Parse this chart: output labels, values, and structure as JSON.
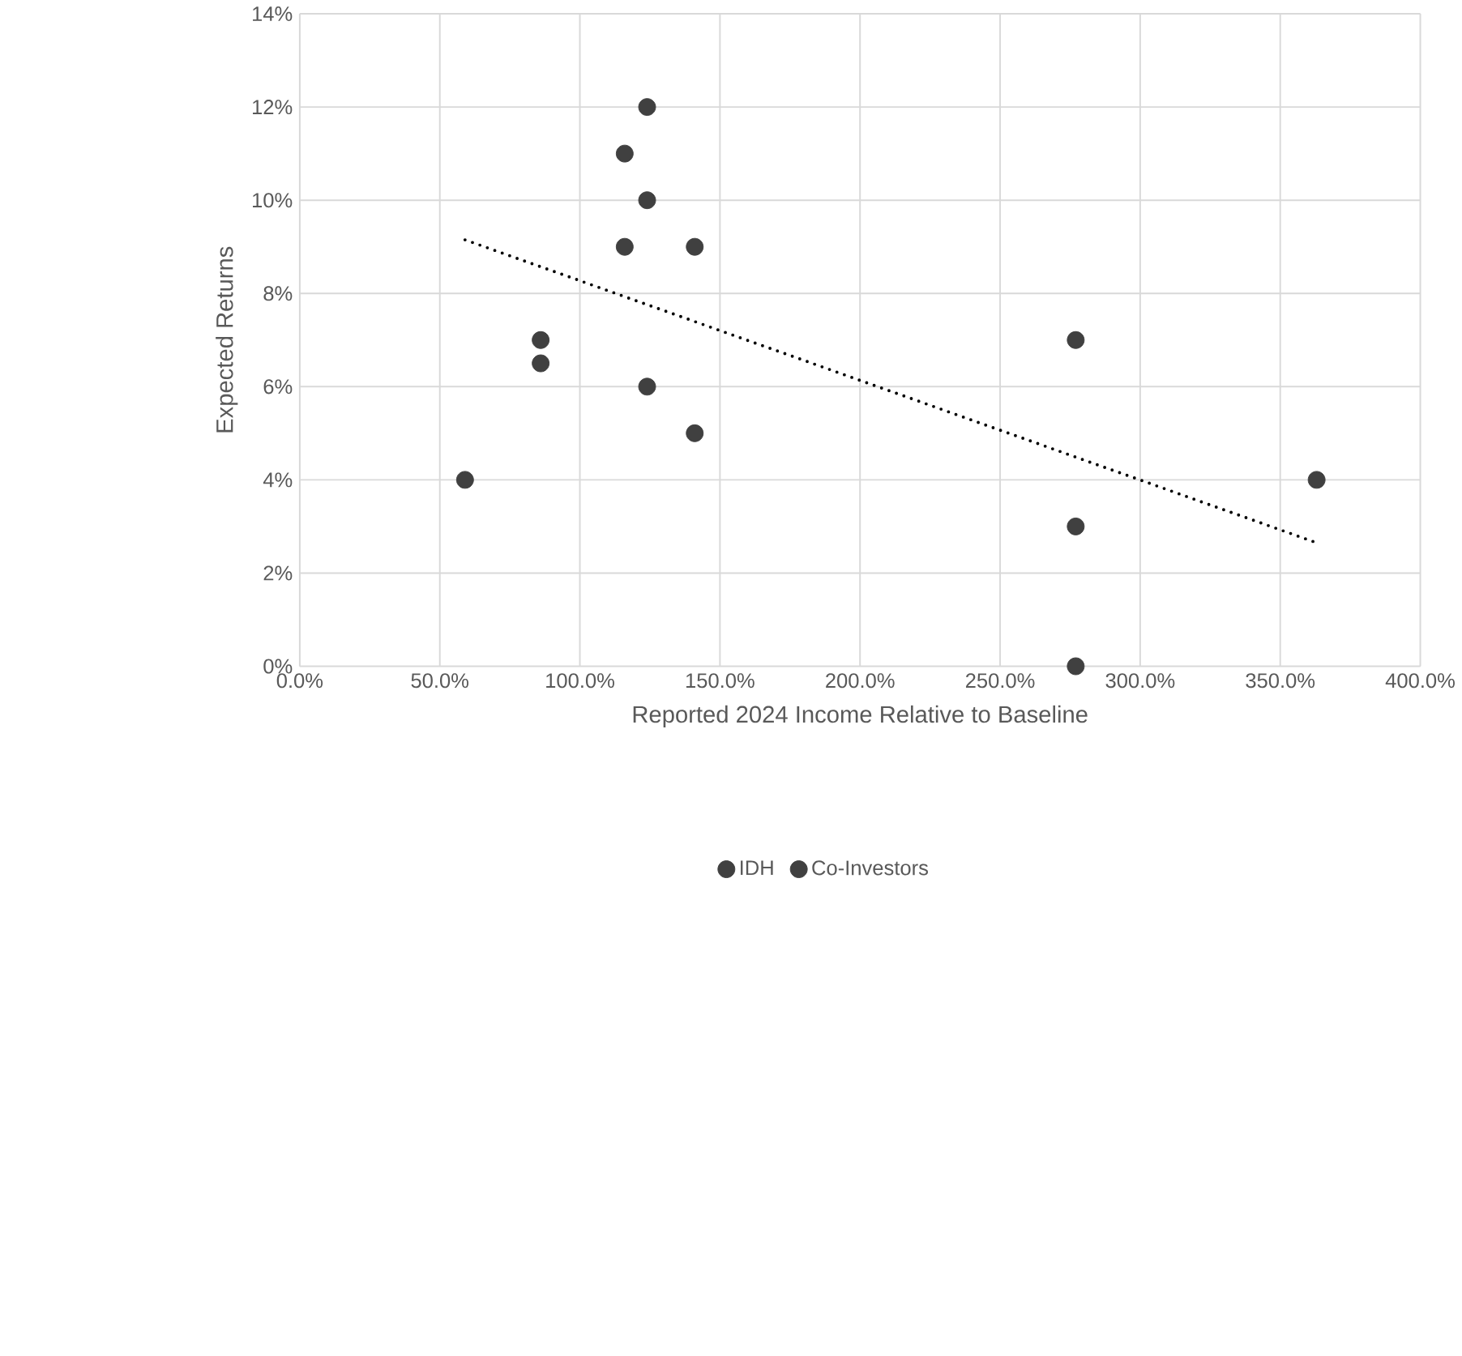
{
  "chart_data": {
    "type": "scatter",
    "xlabel": "Reported 2024 Income Relative to Baseline",
    "ylabel": "Expected Returns",
    "xlim": [
      0,
      400
    ],
    "ylim": [
      0,
      14
    ],
    "xticks": [
      {
        "value": 0,
        "label": "0.0%"
      },
      {
        "value": 50,
        "label": "50.0%"
      },
      {
        "value": 100,
        "label": "100.0%"
      },
      {
        "value": 150,
        "label": "150.0%"
      },
      {
        "value": 200,
        "label": "200.0%"
      },
      {
        "value": 250,
        "label": "250.0%"
      },
      {
        "value": 300,
        "label": "300.0%"
      },
      {
        "value": 350,
        "label": "350.0%"
      },
      {
        "value": 400,
        "label": "400.0%"
      }
    ],
    "yticks": [
      {
        "value": 0,
        "label": "0%"
      },
      {
        "value": 2,
        "label": "2%"
      },
      {
        "value": 4,
        "label": "4%"
      },
      {
        "value": 6,
        "label": "6%"
      },
      {
        "value": 8,
        "label": "8%"
      },
      {
        "value": 10,
        "label": "10%"
      },
      {
        "value": 12,
        "label": "12%"
      },
      {
        "value": 14,
        "label": "14%"
      }
    ],
    "grid": true,
    "legend": "bottom",
    "marker": "circle",
    "series": [
      {
        "name": "IDH",
        "color": "#404040",
        "x": [
          59,
          86,
          116,
          124,
          141,
          277,
          363
        ],
        "values": [
          4,
          7,
          11,
          12,
          9,
          7,
          4
        ]
      },
      {
        "name": "Co-Investors",
        "color": "#404040",
        "x": [
          86,
          116,
          124,
          124,
          141,
          277,
          277
        ],
        "values": [
          6.5,
          9,
          10,
          6,
          5,
          3,
          0
        ]
      },
      {
        "type": "line",
        "color": "#000000",
        "line_style": "dotted",
        "marker": "none",
        "x": [
          59,
          363
        ],
        "values": [
          9.15,
          2.65
        ]
      }
    ]
  }
}
